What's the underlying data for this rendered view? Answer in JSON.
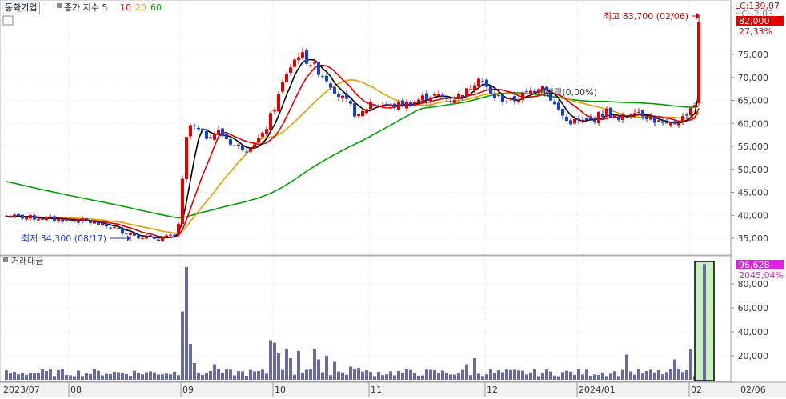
{
  "header": {
    "title": "동화기업",
    "ma_label": "종가 지수 5",
    "ma_periods": [
      "10",
      "20",
      "60"
    ],
    "ma_colors": [
      "#e00000",
      "#e0a000",
      "#00a000"
    ],
    "sub_title": "거래대금",
    "lc_label": "LC:139,07",
    "hc_label": "HC:-2.03"
  },
  "price_labels": {
    "last_price": "82,000",
    "change_pct": "27,33%",
    "high_label": "최고 83,700 (02/06)",
    "low_label": "최저 34,300 (08/17)",
    "dividend_label": "배당락(0,00%)"
  },
  "volume_labels": {
    "last_value": "96,628",
    "change_pct": "2045,04%"
  },
  "chart_data": [
    {
      "type": "candlestick",
      "title": "동화기업",
      "ylim": [
        30000,
        83700
      ],
      "y_ticks": [
        "35,000",
        "40,000",
        "45,000",
        "50,000",
        "55,000",
        "60,000",
        "65,000",
        "70,000",
        "75,000"
      ],
      "x_ticks": [
        "2023/07",
        "08",
        "09",
        "10",
        "11",
        "12",
        "2024/01",
        "02",
        "02/06"
      ],
      "series": [
        {
          "name": "5",
          "color": "#000000"
        },
        {
          "name": "10",
          "color": "#e00000"
        },
        {
          "name": "20",
          "color": "#e0a000"
        },
        {
          "name": "60",
          "color": "#00a000"
        }
      ],
      "anchors": [
        {
          "i": 0,
          "c": 39800
        },
        {
          "i": 10,
          "c": 39300
        },
        {
          "i": 20,
          "c": 38700
        },
        {
          "i": 27,
          "c": 37200
        },
        {
          "i": 33,
          "c": 35500
        },
        {
          "i": 38,
          "c": 34900
        },
        {
          "i": 42,
          "c": 35500
        },
        {
          "i": 43,
          "c": 38200
        },
        {
          "i": 45,
          "c": 56500
        },
        {
          "i": 46,
          "c": 59500
        },
        {
          "i": 50,
          "c": 57200
        },
        {
          "i": 53,
          "c": 58200
        },
        {
          "i": 57,
          "c": 55200
        },
        {
          "i": 60,
          "c": 54600
        },
        {
          "i": 64,
          "c": 57200
        },
        {
          "i": 67,
          "c": 63500
        },
        {
          "i": 70,
          "c": 71000
        },
        {
          "i": 73,
          "c": 75200
        },
        {
          "i": 76,
          "c": 73200
        },
        {
          "i": 80,
          "c": 69800
        },
        {
          "i": 83,
          "c": 66200
        },
        {
          "i": 86,
          "c": 63500
        },
        {
          "i": 88,
          "c": 61200
        },
        {
          "i": 91,
          "c": 64500
        },
        {
          "i": 96,
          "c": 63700
        },
        {
          "i": 101,
          "c": 64500
        },
        {
          "i": 106,
          "c": 66200
        },
        {
          "i": 111,
          "c": 65200
        },
        {
          "i": 115,
          "c": 66900
        },
        {
          "i": 118,
          "c": 70500
        },
        {
          "i": 121,
          "c": 66100
        },
        {
          "i": 126,
          "c": 64800
        },
        {
          "i": 131,
          "c": 66900
        },
        {
          "i": 134,
          "c": 68800
        },
        {
          "i": 137,
          "c": 64000
        },
        {
          "i": 140,
          "c": 60500
        },
        {
          "i": 145,
          "c": 60300
        },
        {
          "i": 150,
          "c": 62600
        },
        {
          "i": 153,
          "c": 60500
        },
        {
          "i": 157,
          "c": 63200
        },
        {
          "i": 161,
          "c": 61200
        },
        {
          "i": 165,
          "c": 59200
        },
        {
          "i": 169,
          "c": 61200
        },
        {
          "i": 171,
          "c": 63500
        },
        {
          "i": 172,
          "c": 64400
        },
        {
          "i": 173,
          "c": 82000
        }
      ],
      "high": 83700,
      "low": 34300,
      "last": 82000
    },
    {
      "type": "bar",
      "title": "거래대금",
      "ylim": [
        0,
        100000
      ],
      "y_ticks": [
        "20,000",
        "40,000",
        "60,000",
        "80,000"
      ],
      "spikes": [
        {
          "i": 44,
          "v": 57000
        },
        {
          "i": 45,
          "v": 94000
        },
        {
          "i": 46,
          "v": 30000
        },
        {
          "i": 47,
          "v": 14000
        },
        {
          "i": 52,
          "v": 13000
        },
        {
          "i": 53,
          "v": 9000
        },
        {
          "i": 66,
          "v": 33000
        },
        {
          "i": 67,
          "v": 31000
        },
        {
          "i": 68,
          "v": 22000
        },
        {
          "i": 70,
          "v": 26000
        },
        {
          "i": 71,
          "v": 18000
        },
        {
          "i": 73,
          "v": 24000
        },
        {
          "i": 77,
          "v": 26000
        },
        {
          "i": 78,
          "v": 17000
        },
        {
          "i": 80,
          "v": 20000
        },
        {
          "i": 82,
          "v": 15000
        },
        {
          "i": 86,
          "v": 11000
        },
        {
          "i": 88,
          "v": 10000
        },
        {
          "i": 115,
          "v": 13000
        },
        {
          "i": 117,
          "v": 18000
        },
        {
          "i": 121,
          "v": 9000
        },
        {
          "i": 155,
          "v": 21000
        },
        {
          "i": 167,
          "v": 17000
        },
        {
          "i": 171,
          "v": 26000
        },
        {
          "i": 173,
          "v": 96628
        }
      ]
    }
  ]
}
